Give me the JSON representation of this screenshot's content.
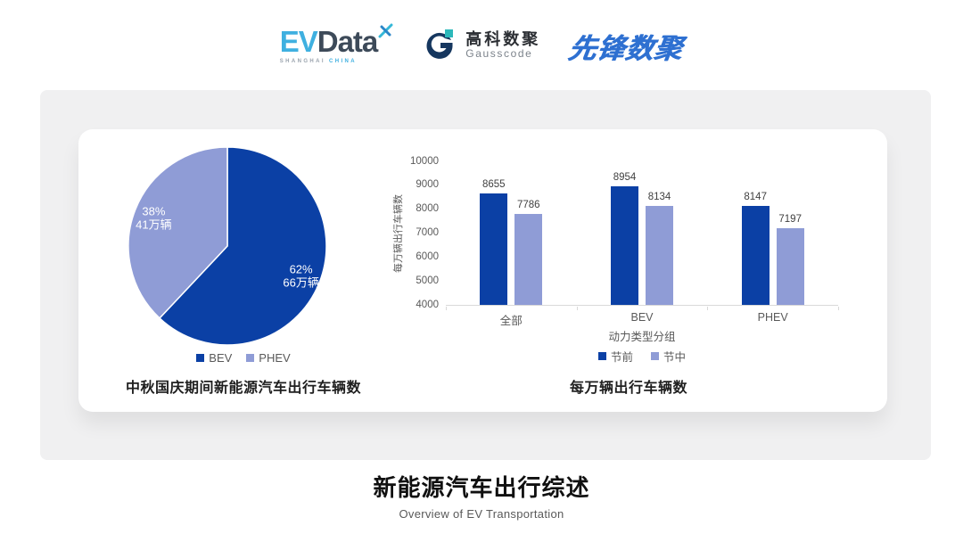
{
  "header": {
    "evdata": {
      "ev": "EV",
      "data": "Data",
      "sub_left": "SHANGHAI",
      "sub_right": "CHINA"
    },
    "gausscode": {
      "cn": "高科数聚",
      "en": "Gausscode"
    },
    "xianfeng": "先锋数聚"
  },
  "colors": {
    "primary_blue": "#0b40a5",
    "light_periwinkle": "#8f9cd6",
    "axis_gray": "#595959",
    "baseline_gray": "#d9d9d9"
  },
  "chart_data": [
    {
      "type": "pie",
      "title": "中秋国庆期间新能源汽车出行车辆数",
      "slices": [
        {
          "label": "BEV",
          "percent": 62,
          "value_label": "66万辆",
          "color": "#0b40a5"
        },
        {
          "label": "PHEV",
          "percent": 38,
          "value_label": "41万辆",
          "color": "#8f9cd6"
        }
      ],
      "start_angle_deg": 0,
      "direction": "clockwise",
      "legend_position": "bottom"
    },
    {
      "type": "bar",
      "title": "每万辆出行车辆数",
      "categories": [
        "全部",
        "BEV",
        "PHEV"
      ],
      "series": [
        {
          "name": "节前",
          "color": "#0b40a5",
          "values": [
            8655,
            8954,
            8147
          ]
        },
        {
          "name": "节中",
          "color": "#8f9cd6",
          "values": [
            7786,
            8134,
            7197
          ]
        }
      ],
      "xlabel": "动力类型分组",
      "ylabel": "每万辆出行车辆数",
      "ylim": [
        4000,
        10000
      ],
      "ytick_step": 1000,
      "grid": false,
      "legend_position": "bottom"
    }
  ],
  "footer": {
    "title": "新能源汽车出行综述",
    "subtitle": "Overview of EV Transportation"
  }
}
